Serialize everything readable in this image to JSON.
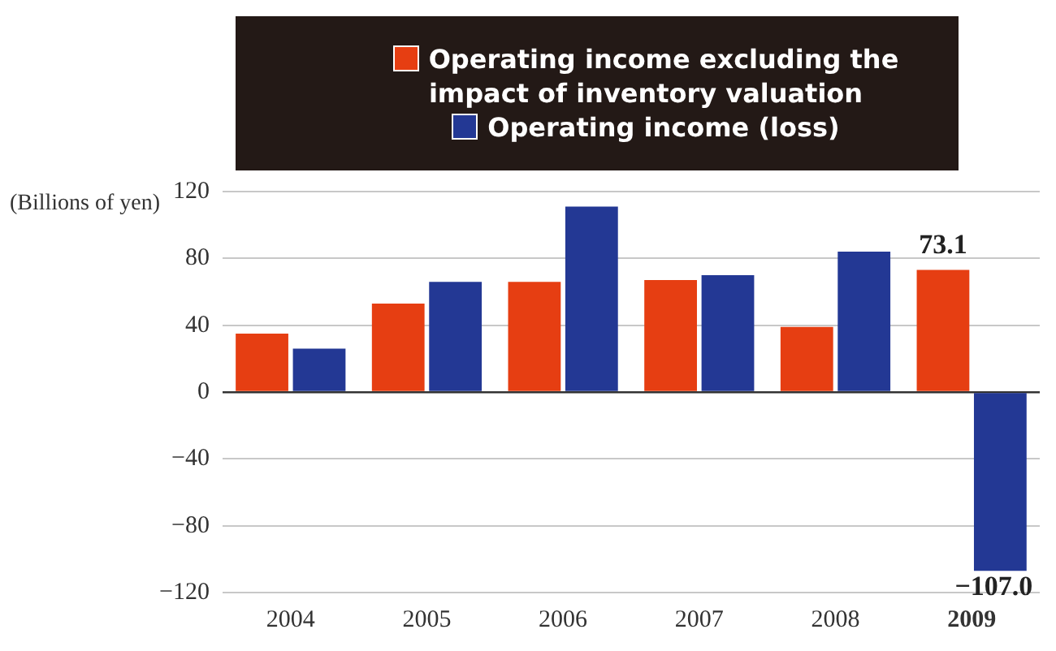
{
  "chart_data": {
    "type": "bar",
    "ylabel": "(Billions of yen)",
    "categories": [
      "2004",
      "2005",
      "2006",
      "2007",
      "2008",
      "2009"
    ],
    "series": [
      {
        "name": "Operating income excluding the impact of inventory valuation",
        "color": "#e63e12",
        "values": [
          35,
          53,
          66,
          67,
          39,
          73.1
        ],
        "value_labels": [
          null,
          null,
          null,
          null,
          null,
          "73.1"
        ]
      },
      {
        "name": "Operating income (loss)",
        "color": "#233894",
        "values": [
          26,
          66,
          111,
          70,
          84,
          -107.0
        ],
        "value_labels": [
          null,
          null,
          null,
          null,
          null,
          "−107.0"
        ]
      }
    ],
    "ylim": [
      -120,
      120
    ],
    "yticks": [
      {
        "value": -120,
        "label": "−120"
      },
      {
        "value": -80,
        "label": "−80"
      },
      {
        "value": -40,
        "label": "−40"
      },
      0,
      40,
      80,
      120
    ],
    "grid": "y",
    "legend": "top"
  }
}
